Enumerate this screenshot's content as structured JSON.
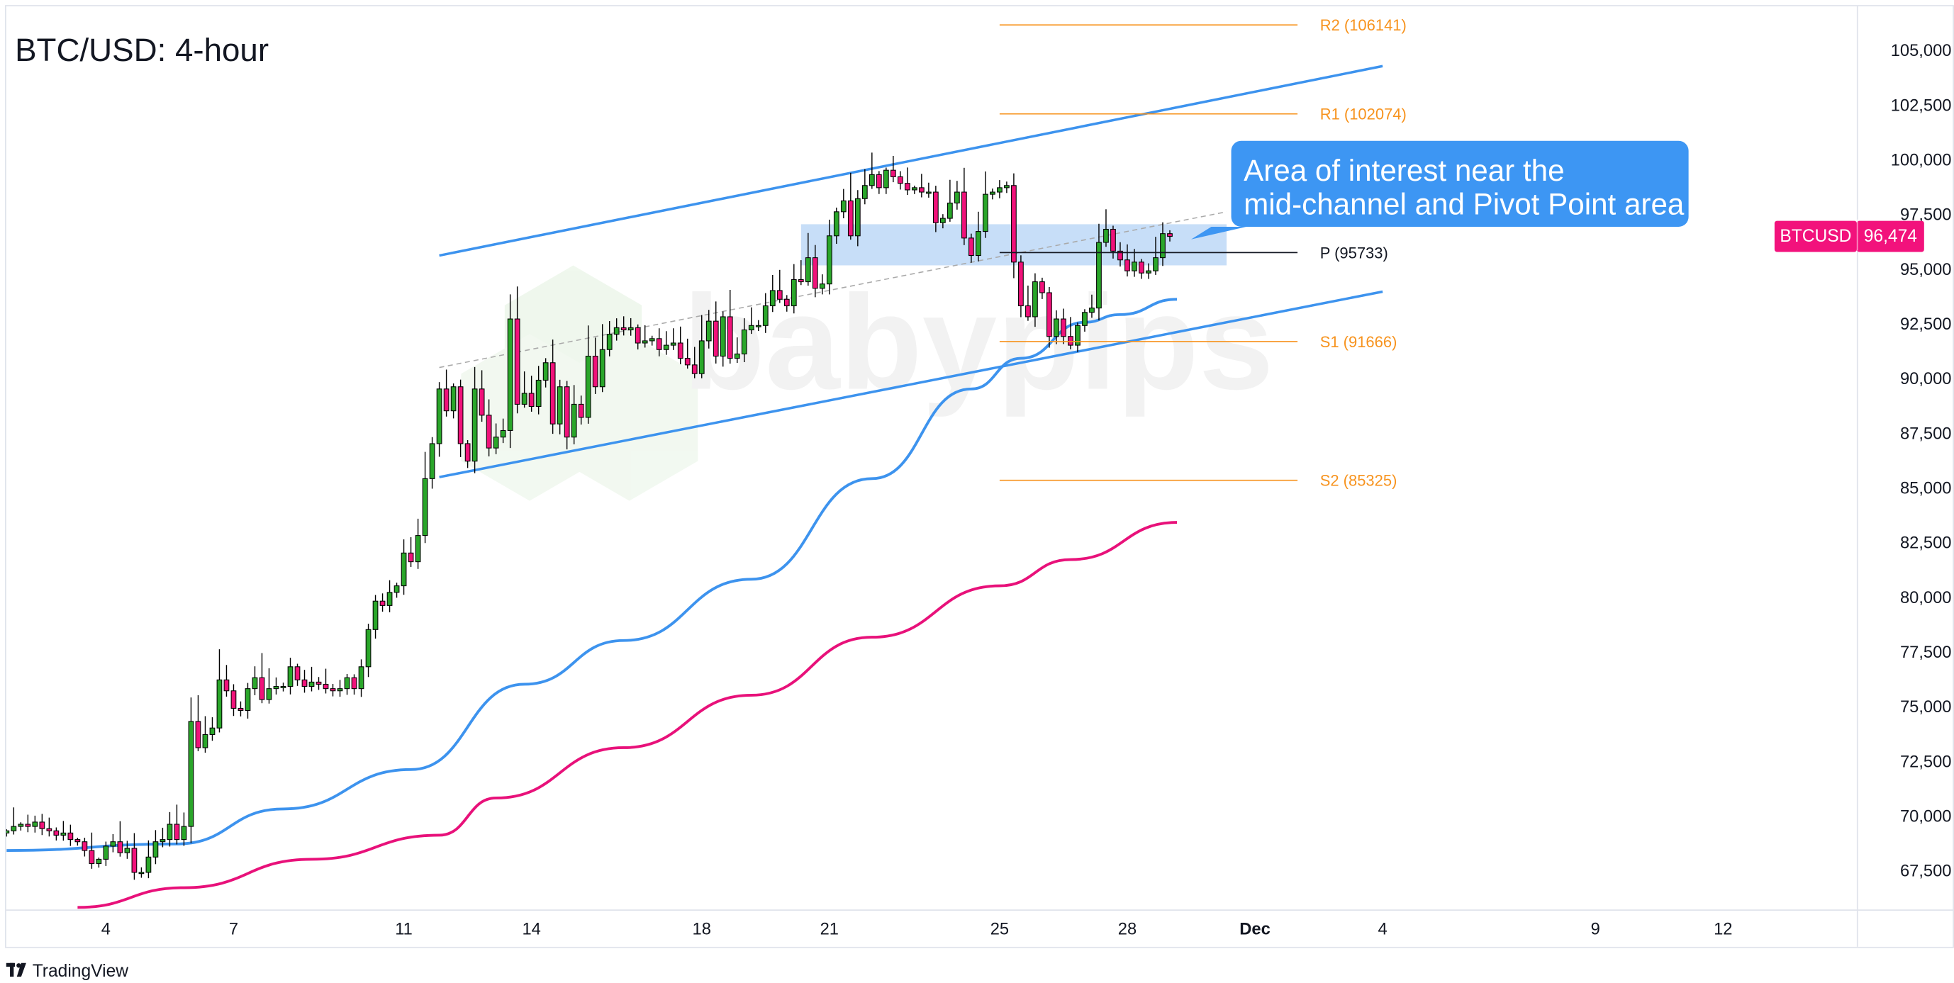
{
  "title": "BTC/USD: 4-hour",
  "symbol_badge": {
    "symbol": "BTCUSD",
    "price": "96,474",
    "color": "#f2127c"
  },
  "footer": {
    "brand": "TradingView"
  },
  "watermark": {
    "text": "babypips"
  },
  "colors": {
    "up": "#2aa62a",
    "down": "#f0127a",
    "channel": "#3d93ee",
    "ma_fast": "#3d93ee",
    "ma_slow": "#e8117a",
    "pivot_levels": "#f7931e",
    "pivot": "#131722",
    "zone": "#c4dcf8",
    "callout": "#3d96f3"
  },
  "annotation": {
    "line1": "Area of interest near the",
    "line2": "mid-channel and Pivot Point area",
    "points_to": {
      "date": "Nov 29 12:00",
      "price": 96340
    }
  },
  "chart_data": {
    "type": "candlestick",
    "title": "BTC/USD: 4-hour",
    "interval": "4h",
    "start": "Nov 1 16:00",
    "close": [
      69300,
      69500,
      69600,
      69500,
      69700,
      69400,
      69300,
      69100,
      69200,
      68900,
      68800,
      68400,
      67800,
      68000,
      68600,
      68800,
      68300,
      68500,
      67400,
      67400,
      68100,
      68800,
      68900,
      69600,
      68900,
      69500,
      74300,
      73100,
      73700,
      74000,
      76200,
      75700,
      74900,
      74800,
      75800,
      76300,
      75300,
      75800,
      75900,
      75900,
      76800,
      76200,
      75900,
      76100,
      76000,
      75800,
      75700,
      75800,
      76300,
      75800,
      76800,
      78500,
      79800,
      79600,
      80200,
      80500,
      82000,
      81600,
      82800,
      85400,
      87000,
      89500,
      88500,
      89600,
      87000,
      86200,
      89500,
      88300,
      86800,
      87300,
      87600,
      92700,
      88800,
      89300,
      88700,
      89900,
      90700,
      87900,
      89600,
      87300,
      88800,
      88200,
      91000,
      89600,
      91300,
      92000,
      92300,
      92200,
      92300,
      91600,
      91700,
      91800,
      91300,
      91500,
      91600,
      90900,
      90600,
      90200,
      91700,
      92600,
      91000,
      92800,
      90900,
      91100,
      92200,
      92400,
      92400,
      93300,
      94000,
      93600,
      93300,
      94500,
      94400,
      95500,
      94100,
      94300,
      96500,
      97600,
      98100,
      96500,
      98200,
      98800,
      99300,
      98700,
      99500,
      99200,
      98900,
      98600,
      98700,
      98500,
      98500,
      97100,
      97300,
      98000,
      98500,
      96400,
      95600,
      96700,
      98400,
      98500,
      98700,
      98800,
      95300,
      93300,
      92800,
      94400,
      93900,
      91900,
      92700,
      91900,
      91500,
      92400,
      93000,
      93200,
      96200,
      96800,
      95800,
      95400,
      94900,
      95300,
      94800,
      94900,
      95500,
      96600,
      96474
    ],
    "last_price": 96474,
    "y_axis": {
      "range": [
        66000,
        106500
      ],
      "ticks": [
        105000,
        102500,
        100000,
        97500,
        95000,
        92500,
        90000,
        87500,
        85000,
        82500,
        80000,
        77500,
        75000,
        72500,
        70000,
        67500
      ],
      "tick_labels": [
        "105,000",
        "102,500",
        "100,000",
        "97,500",
        "95,000",
        "92,500",
        "90,000",
        "87,500",
        "85,000",
        "82,500",
        "80,000",
        "77,500",
        "75,000",
        "72,500",
        "70,000",
        "67,500"
      ]
    },
    "x_axis": {
      "ticks": [
        {
          "label": "4",
          "date": "Nov 4 00:00"
        },
        {
          "label": "7",
          "date": "Nov 7 00:00"
        },
        {
          "label": "11",
          "date": "Nov 11 00:00"
        },
        {
          "label": "14",
          "date": "Nov 14 00:00"
        },
        {
          "label": "18",
          "date": "Nov 18 00:00"
        },
        {
          "label": "21",
          "date": "Nov 21 00:00"
        },
        {
          "label": "25",
          "date": "Nov 25 00:00"
        },
        {
          "label": "28",
          "date": "Nov 28 00:00"
        },
        {
          "label": "Dec",
          "date": "Dec 1 00:00"
        },
        {
          "label": "4",
          "date": "Dec 4 00:00"
        },
        {
          "label": "9",
          "date": "Dec 9 00:00"
        },
        {
          "label": "12",
          "date": "Dec 12 00:00"
        }
      ]
    },
    "moving_averages": [
      {
        "color": "#3d93ee",
        "points": [
          [
            "Nov 1 16:00",
            68400
          ],
          [
            "Nov 5 16:00",
            68700
          ],
          [
            "Nov 8 04:00",
            70300
          ],
          [
            "Nov 11 04:00",
            72100
          ],
          [
            "Nov 13 20:00",
            76000
          ],
          [
            "Nov 16 04:00",
            78000
          ],
          [
            "Nov 19 04:00",
            80800
          ],
          [
            "Nov 22 00:00",
            85400
          ],
          [
            "Nov 24 08:00",
            89500
          ],
          [
            "Nov 25 12:00",
            90900
          ],
          [
            "Nov 27 00:00",
            92550
          ],
          [
            "Nov 27 20:00",
            92900
          ],
          [
            "Nov 29 04:00",
            93600
          ]
        ]
      },
      {
        "color": "#e8117a",
        "points": [
          [
            "Nov 3 08:00",
            65800
          ],
          [
            "Nov 5 20:00",
            66700
          ],
          [
            "Nov 8 20:00",
            68000
          ],
          [
            "Nov 11 20:00",
            69100
          ],
          [
            "Nov 13 04:00",
            70800
          ],
          [
            "Nov 16 04:00",
            73100
          ],
          [
            "Nov 19 04:00",
            75500
          ],
          [
            "Nov 22 00:00",
            78150
          ],
          [
            "Nov 25 00:00",
            80500
          ],
          [
            "Nov 26 16:00",
            81700
          ],
          [
            "Nov 29 04:00",
            83400
          ]
        ]
      }
    ],
    "channel": {
      "upper": [
        [
          "Nov 11 20:00",
          95600
        ],
        [
          "Dec 4 00:00",
          104260
        ]
      ],
      "lower": [
        [
          "Nov 11 20:00",
          85470
        ],
        [
          "Dec 4 00:00",
          93950
        ]
      ],
      "middle_dashed": [
        [
          "Nov 11 20:00",
          90480
        ],
        [
          "Nov 30 08:00",
          97600
        ]
      ]
    },
    "zone": {
      "from": "Nov 20 08:00",
      "to": "Nov 30 08:00",
      "low": 95150,
      "high": 97030
    },
    "pivots": {
      "from": "Nov 25 00:00",
      "to": "Dec 2 00:00",
      "levels": [
        {
          "name": "R2",
          "value": 106141,
          "label": "R2 (106141)"
        },
        {
          "name": "R1",
          "value": 102074,
          "label": "R1 (102074)"
        },
        {
          "name": "P",
          "value": 95733,
          "label": "P (95733)"
        },
        {
          "name": "S1",
          "value": 91666,
          "label": "S1 (91666)"
        },
        {
          "name": "S2",
          "value": 85325,
          "label": "S2 (85325)"
        }
      ]
    }
  }
}
